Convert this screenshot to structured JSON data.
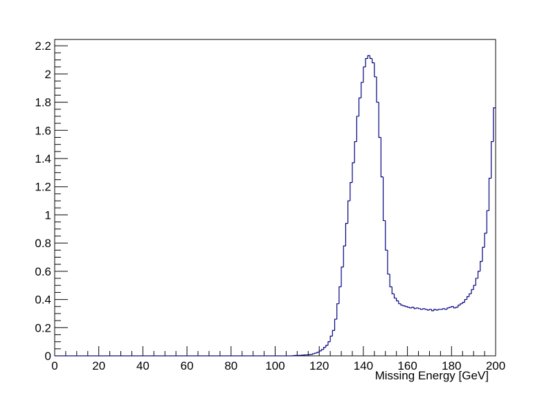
{
  "chart_data": {
    "type": "histogram",
    "x_label": "Missing Energy [GeV]",
    "color": "#000080",
    "xlim": [
      0,
      200
    ],
    "xticks": [
      0,
      20,
      40,
      60,
      80,
      100,
      120,
      140,
      160,
      180,
      200
    ],
    "ylim": [
      0,
      2.245
    ],
    "yticks": [
      0,
      0.2,
      0.4,
      0.6,
      0.8,
      1,
      1.2,
      1.4,
      1.6,
      1.8,
      2,
      2.2
    ],
    "bins": [
      0,
      1,
      2,
      3,
      4,
      5,
      6,
      7,
      8,
      9,
      10,
      11,
      12,
      13,
      14,
      15,
      16,
      17,
      18,
      19,
      20,
      21,
      22,
      23,
      24,
      25,
      26,
      27,
      28,
      29,
      30,
      31,
      32,
      33,
      34,
      35,
      36,
      37,
      38,
      39,
      40,
      41,
      42,
      43,
      44,
      45,
      46,
      47,
      48,
      49,
      50,
      51,
      52,
      53,
      54,
      55,
      56,
      57,
      58,
      59,
      60,
      61,
      62,
      63,
      64,
      65,
      66,
      67,
      68,
      69,
      70,
      71,
      72,
      73,
      74,
      75,
      76,
      77,
      78,
      79,
      80,
      81,
      82,
      83,
      84,
      85,
      86,
      87,
      88,
      89,
      90,
      91,
      92,
      93,
      94,
      95,
      96,
      97,
      98,
      99,
      100,
      101,
      102,
      103,
      104,
      105,
      106,
      107,
      108,
      109,
      110,
      111,
      112,
      113,
      114,
      115,
      116,
      117,
      118,
      119,
      120,
      121,
      122,
      123,
      124,
      125,
      126,
      127,
      128,
      129,
      130,
      131,
      132,
      133,
      134,
      135,
      136,
      137,
      138,
      139,
      140,
      141,
      142,
      143,
      144,
      145,
      146,
      147,
      148,
      149,
      150,
      151,
      152,
      153,
      154,
      155,
      156,
      157,
      158,
      159,
      160,
      161,
      162,
      163,
      164,
      165,
      166,
      167,
      168,
      169,
      170,
      171,
      172,
      173,
      174,
      175,
      176,
      177,
      178,
      179,
      180,
      181,
      182,
      183,
      184,
      185,
      186,
      187,
      188,
      189,
      190,
      191,
      192,
      193,
      194,
      195,
      196,
      197,
      198,
      199,
      200
    ],
    "values": [
      0,
      0,
      0,
      0,
      0,
      0,
      0,
      0,
      0,
      0,
      0,
      0,
      0,
      0,
      0,
      0,
      0,
      0,
      0,
      0,
      0,
      0,
      0,
      0,
      0,
      0,
      0,
      0,
      0,
      0,
      0,
      0,
      0,
      0,
      0,
      0,
      0,
      0,
      0,
      0,
      0,
      0,
      0,
      0,
      0,
      0,
      0,
      0,
      0,
      0,
      0,
      0,
      0,
      0,
      0,
      0,
      0,
      0,
      0,
      0,
      0,
      0,
      0,
      0,
      0,
      0,
      0,
      0,
      0,
      0,
      0,
      0,
      0,
      0,
      0,
      0,
      0,
      0,
      0,
      0,
      0,
      0,
      0,
      0,
      0,
      0,
      0,
      0,
      0,
      0,
      0,
      0,
      0,
      0,
      0,
      0,
      0,
      0,
      0,
      0,
      0,
      0,
      0,
      0,
      0,
      0,
      0,
      0,
      0.002,
      0.003,
      0.003,
      0.004,
      0.005,
      0.006,
      0.007,
      0.008,
      0.01,
      0.015,
      0.02,
      0.025,
      0.035,
      0.045,
      0.06,
      0.075,
      0.1,
      0.14,
      0.18,
      0.26,
      0.37,
      0.49,
      0.63,
      0.78,
      0.94,
      1.1,
      1.23,
      1.37,
      1.52,
      1.7,
      1.83,
      1.94,
      2.05,
      2.11,
      2.13,
      2.11,
      2.08,
      1.98,
      1.8,
      1.55,
      1.27,
      0.96,
      0.75,
      0.58,
      0.49,
      0.44,
      0.41,
      0.39,
      0.37,
      0.36,
      0.355,
      0.35,
      0.345,
      0.34,
      0.345,
      0.335,
      0.34,
      0.335,
      0.33,
      0.335,
      0.33,
      0.325,
      0.33,
      0.32,
      0.33,
      0.325,
      0.33,
      0.33,
      0.335,
      0.33,
      0.34,
      0.345,
      0.35,
      0.34,
      0.345,
      0.36,
      0.37,
      0.38,
      0.4,
      0.42,
      0.44,
      0.47,
      0.5,
      0.55,
      0.6,
      0.67,
      0.77,
      0.87,
      1.03,
      1.26,
      1.52,
      1.76
    ]
  }
}
